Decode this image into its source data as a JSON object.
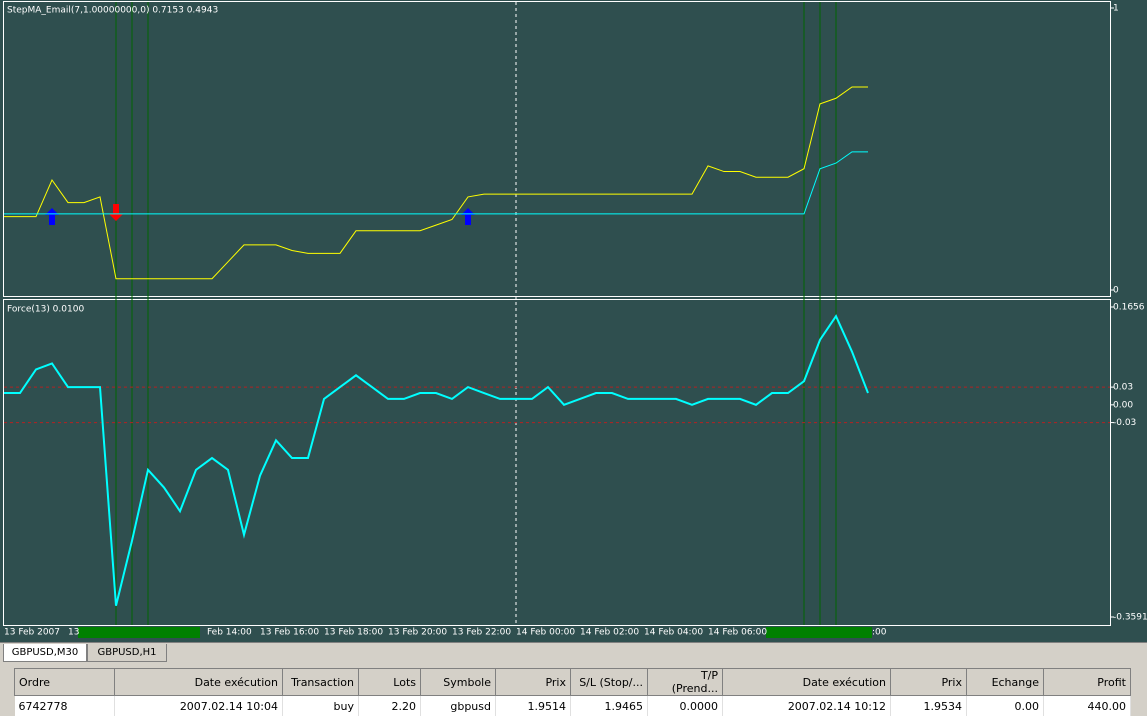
{
  "panes": [
    {
      "title": "StepMA_Email(7,1.00000000,0) 0.7153 0.4943",
      "ylim": [
        0,
        1
      ],
      "yticks": [
        1,
        0
      ],
      "series": [
        {
          "color": "#ffff00",
          "values": [
            0.26,
            0.26,
            0.26,
            0.39,
            0.31,
            0.31,
            0.33,
            0.04,
            0.04,
            0.04,
            0.04,
            0.04,
            0.04,
            0.04,
            0.1,
            0.16,
            0.16,
            0.16,
            0.14,
            0.13,
            0.13,
            0.13,
            0.21,
            0.21,
            0.21,
            0.21,
            0.21,
            0.23,
            0.25,
            0.33,
            0.34,
            0.34,
            0.34,
            0.34,
            0.34,
            0.34,
            0.34,
            0.34,
            0.34,
            0.34,
            0.34,
            0.34,
            0.34,
            0.34,
            0.44,
            0.42,
            0.42,
            0.4,
            0.4,
            0.4,
            0.43,
            0.66,
            0.68,
            0.72,
            0.72
          ]
        },
        {
          "color": "#00ffff",
          "values": [
            0.27,
            0.27,
            0.27,
            0.27,
            0.27,
            0.27,
            0.27,
            0.27,
            0.27,
            0.27,
            0.27,
            0.27,
            0.27,
            0.27,
            0.27,
            0.27,
            0.27,
            0.27,
            0.27,
            0.27,
            0.27,
            0.27,
            0.27,
            0.27,
            0.27,
            0.27,
            0.27,
            0.27,
            0.27,
            0.27,
            0.27,
            0.27,
            0.27,
            0.27,
            0.27,
            0.27,
            0.27,
            0.27,
            0.27,
            0.27,
            0.27,
            0.27,
            0.27,
            0.27,
            0.27,
            0.27,
            0.27,
            0.27,
            0.27,
            0.27,
            0.27,
            0.43,
            0.45,
            0.49,
            0.49
          ]
        }
      ]
    },
    {
      "title": "Force(13) 0.0100",
      "ylim": [
        -0.3591,
        0.1656
      ],
      "yticks": [
        0.1656,
        0.03,
        {
          "value": 0,
          "label": "0.00"
        },
        -0.03,
        -0.3591
      ],
      "levels": [
        0.03,
        -0.03
      ],
      "series": [
        {
          "color": "#00ffff",
          "values": [
            0.02,
            0.02,
            0.06,
            0.07,
            0.03,
            0.03,
            0.03,
            -0.34,
            -0.23,
            -0.11,
            -0.14,
            -0.18,
            -0.11,
            -0.09,
            -0.11,
            -0.22,
            -0.12,
            -0.06,
            -0.09,
            -0.09,
            0.01,
            0.03,
            0.05,
            0.03,
            0.01,
            0.01,
            0.02,
            0.02,
            0.01,
            0.03,
            0.02,
            0.01,
            0.01,
            0.01,
            0.03,
            0,
            0.01,
            0.02,
            0.02,
            0.01,
            0.01,
            0.01,
            0.01,
            0,
            0.01,
            0.01,
            0.01,
            0,
            0.02,
            0.02,
            0.04,
            0.11,
            0.15,
            0.09,
            0.02
          ]
        }
      ]
    }
  ],
  "time_axis": [
    "13 Feb 2007",
    "13",
    "Feb 14:00",
    "13 Feb 16:00",
    "13 Feb 18:00",
    "13 Feb 20:00",
    "13 Feb 22:00",
    "14 Feb 00:00",
    "14 Feb 02:00",
    "14 Feb 04:00",
    "14 Feb 06:00",
    ":00"
  ],
  "tabs": [
    "GBPUSD,M30",
    "GBPUSD,H1"
  ],
  "table": {
    "headers": [
      "Ordre",
      "Date exécution",
      "Transaction",
      "Lots",
      "Symbole",
      "Prix",
      "S/L (Stop/...",
      "T/P (Prend...",
      "Date exécution",
      "Prix",
      "Echange",
      "Profit"
    ],
    "rows": [
      [
        "6742778",
        "2007.02.14 10:04",
        "buy",
        "2.20",
        "gbpusd",
        "1.9514",
        "1.9465",
        "0.0000",
        "2007.02.14 10:12",
        "1.9534",
        "0.00",
        "440.00"
      ]
    ]
  }
}
